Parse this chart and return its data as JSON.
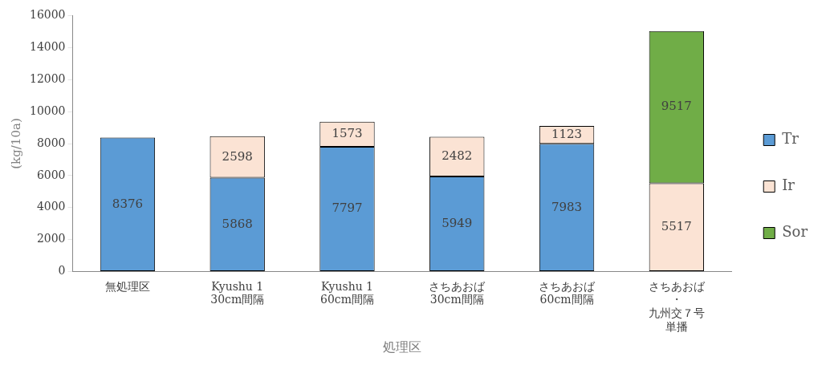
{
  "chart_data": {
    "type": "bar",
    "stacked": true,
    "xlabel": "処理区",
    "ylabel": "(kg/10a)",
    "categories": [
      "無処理区",
      "Kyushu 1\n30cm間隔",
      "Kyushu 1\n60cm間隔",
      "さちあおば\n30cm間隔",
      "さちあおば\n60cm間隔",
      "さちあおば・九州交７号単播"
    ],
    "series": [
      {
        "name": "Tr",
        "color": "#5b9bd5",
        "values": [
          8376,
          5868,
          7797,
          5949,
          7983,
          null
        ]
      },
      {
        "name": "Ir",
        "color": "#fbe3d4",
        "values": [
          null,
          2598,
          1573,
          2482,
          1123,
          5517
        ]
      },
      {
        "name": "Sor",
        "color": "#70ad47",
        "values": [
          null,
          null,
          null,
          null,
          null,
          9517
        ]
      }
    ],
    "ylim": [
      0,
      16000
    ],
    "yticks": [
      0,
      2000,
      4000,
      6000,
      8000,
      10000,
      12000,
      14000,
      16000
    ],
    "grid": false,
    "legend": "right",
    "data_labels": true
  }
}
